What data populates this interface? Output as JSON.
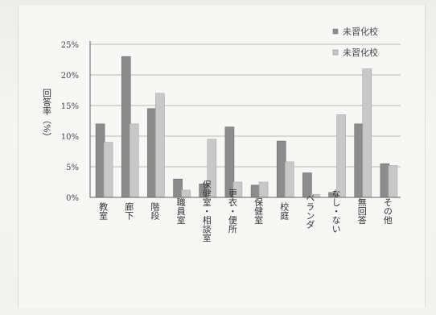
{
  "chart_data": {
    "type": "bar",
    "ylabel": "回答率（%）",
    "yticks": [
      "0%",
      "5%",
      "10%",
      "15%",
      "20%",
      "25%"
    ],
    "ylim": [
      0,
      25
    ],
    "grid": true,
    "legend_position": "top-right",
    "categories": [
      "教室",
      "廊下",
      "階段",
      "職員室",
      "保健室・相談室",
      "更衣・便所",
      "保健室",
      "校庭",
      "ベランダ",
      "なし・ない",
      "無回答",
      "その他"
    ],
    "series": [
      {
        "name": "未習化校",
        "color": "#8c8c8c",
        "values": [
          12,
          23,
          14.5,
          3,
          2.2,
          11.5,
          2,
          9.2,
          4,
          0.8,
          12,
          5.5
        ]
      },
      {
        "name": "未習化校",
        "color": "#c8c8c8",
        "values": [
          9,
          12,
          17,
          1.2,
          9.5,
          2.5,
          2.5,
          5.8,
          0.5,
          13.5,
          21,
          5.2
        ]
      }
    ]
  }
}
